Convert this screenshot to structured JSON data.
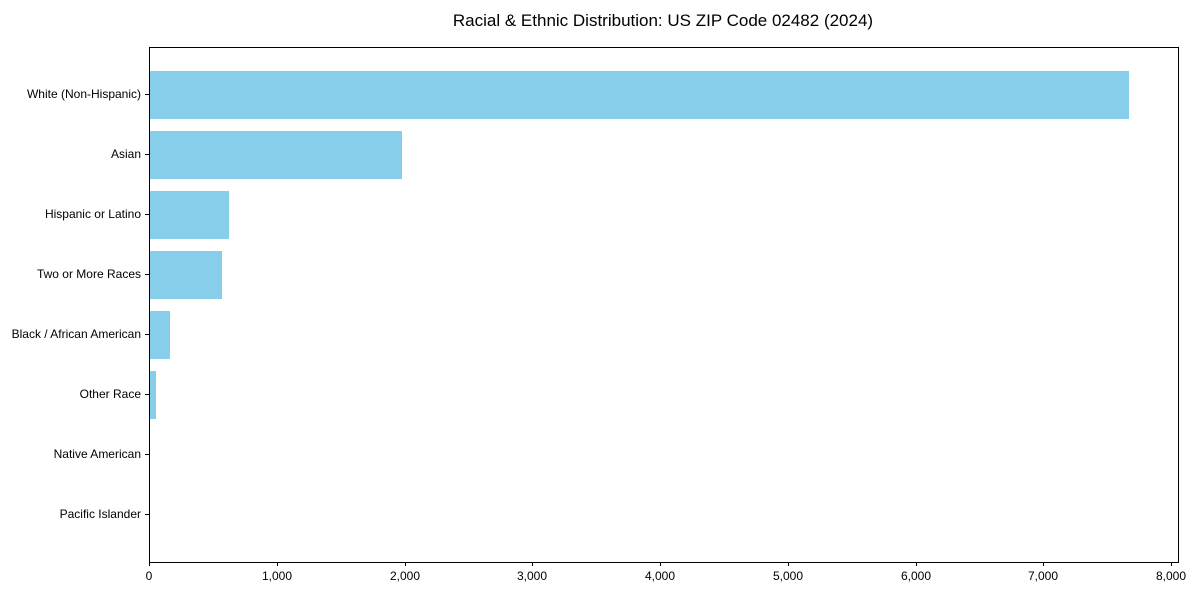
{
  "title": "Racial & Ethnic Distribution: US ZIP Code 02482 (2024)",
  "colors": {
    "bar": "#87CEEB",
    "axis": "#000000",
    "background": "#ffffff",
    "text": "#000000"
  },
  "chart_data": {
    "type": "bar",
    "orientation": "horizontal",
    "title": "Racial & Ethnic Distribution: US ZIP Code 02482 (2024)",
    "categories": [
      "White (Non-Hispanic)",
      "Asian",
      "Hispanic or Latino",
      "Two or More Races",
      "Black / African American",
      "Other Race",
      "Native American",
      "Pacific Islander"
    ],
    "values": [
      7660,
      1975,
      620,
      565,
      155,
      50,
      0,
      0
    ],
    "bar_color": "#87CEEB",
    "xlabel": "",
    "ylabel": "",
    "xlim": [
      0,
      8045
    ],
    "xticks": [
      0,
      1000,
      2000,
      3000,
      4000,
      5000,
      6000,
      7000,
      8000
    ],
    "xtick_labels": [
      "0",
      "1,000",
      "2,000",
      "3,000",
      "4,000",
      "5,000",
      "6,000",
      "7,000",
      "8,000"
    ],
    "grid": false,
    "legend": null
  }
}
